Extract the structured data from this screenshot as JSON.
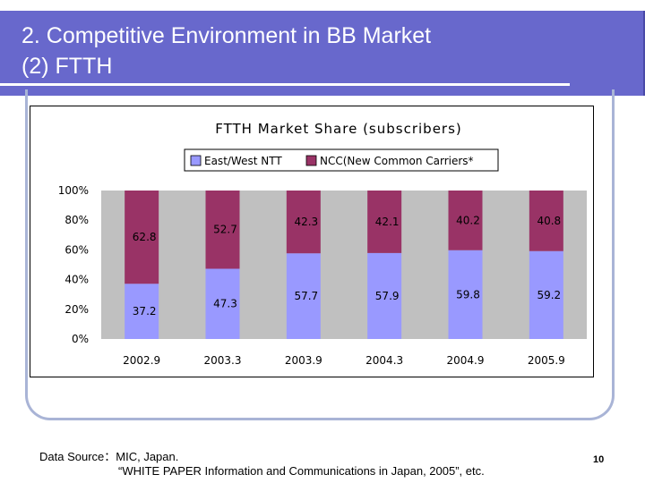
{
  "slide": {
    "title_line1": "2.  Competitive Environment in BB Market",
    "title_line2": "(2) FTTH",
    "source_line1": "Data Source：MIC, Japan.",
    "source_line2": "“WHITE PAPER Information and Communications in Japan, 2005”, etc.",
    "page_number": "10"
  },
  "colors": {
    "header_band": "#6868cc",
    "ntt": "#9999ff",
    "ncc": "#993366",
    "plot_bg": "#c0c0c0"
  },
  "chart_data": {
    "type": "bar",
    "stacked": true,
    "title": "FTTH Market Share (subscribers)",
    "categories": [
      "2002.9",
      "2003.3",
      "2003.9",
      "2004.3",
      "2004.9",
      "2005.9"
    ],
    "series": [
      {
        "name": "East/West NTT",
        "values": [
          37.2,
          47.3,
          57.7,
          57.9,
          59.8,
          59.2
        ],
        "labels": [
          "37.2",
          "47.3",
          "57.7",
          "57.9",
          "59.8",
          "59.2"
        ]
      },
      {
        "name": "NCC(New Common Carriers*",
        "values": [
          62.8,
          52.7,
          42.3,
          42.1,
          40.2,
          40.8
        ],
        "labels": [
          "62.8",
          "52.7",
          "42.3",
          "42.1",
          "40.2",
          "40.8"
        ]
      }
    ],
    "y_ticks": [
      "0%",
      "20%",
      "40%",
      "60%",
      "80%",
      "100%"
    ],
    "ylim": [
      0,
      100
    ],
    "xlabel": "",
    "ylabel": "",
    "legend": "top"
  }
}
